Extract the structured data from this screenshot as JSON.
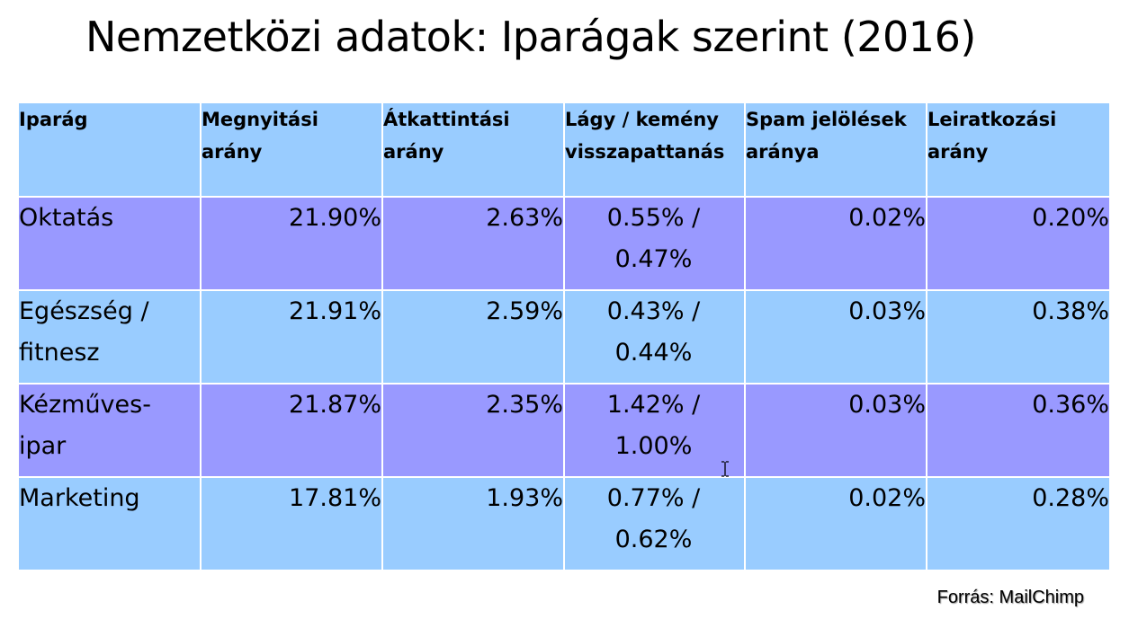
{
  "title": "Nemzetközi adatok: Iparágak szerint (2016)",
  "table": {
    "headers": [
      [
        "Iparág"
      ],
      [
        "Megnyitási",
        "arány"
      ],
      [
        "Átkattintási",
        "arány"
      ],
      [
        "Lágy / kemény",
        "visszapattanás"
      ],
      [
        "Spam jelölések",
        "aránya"
      ],
      [
        "Leiratkozási",
        "arány"
      ]
    ],
    "rows": [
      {
        "industry": [
          "Oktatás"
        ],
        "open_rate": "21.90%",
        "click_rate": "2.63%",
        "bounce": [
          "0.55% /",
          "0.47%"
        ],
        "spam_rate": "0.02%",
        "unsubscribe_rate": "0.20%"
      },
      {
        "industry": [
          "Egészség /",
          "fitnesz"
        ],
        "open_rate": "21.91%",
        "click_rate": "2.59%",
        "bounce": [
          "0.43% /",
          "0.44%"
        ],
        "spam_rate": "0.03%",
        "unsubscribe_rate": "0.38%"
      },
      {
        "industry": [
          "Kézműves-",
          "ipar"
        ],
        "open_rate": "21.87%",
        "click_rate": "2.35%",
        "bounce": [
          "1.42% /",
          "1.00%"
        ],
        "spam_rate": "0.03%",
        "unsubscribe_rate": "0.36%"
      },
      {
        "industry": [
          "Marketing"
        ],
        "open_rate": "17.81%",
        "click_rate": "1.93%",
        "bounce": [
          "0.77% /",
          "0.62%"
        ],
        "spam_rate": "0.02%",
        "unsubscribe_rate": "0.28%"
      }
    ]
  },
  "source": "Forrás: MailChimp",
  "colors": {
    "header_bg": "#99ccff",
    "row_light": "#99ccff",
    "row_purple": "#9999ff"
  },
  "icons": {
    "cursor": "text-cursor-icon"
  }
}
